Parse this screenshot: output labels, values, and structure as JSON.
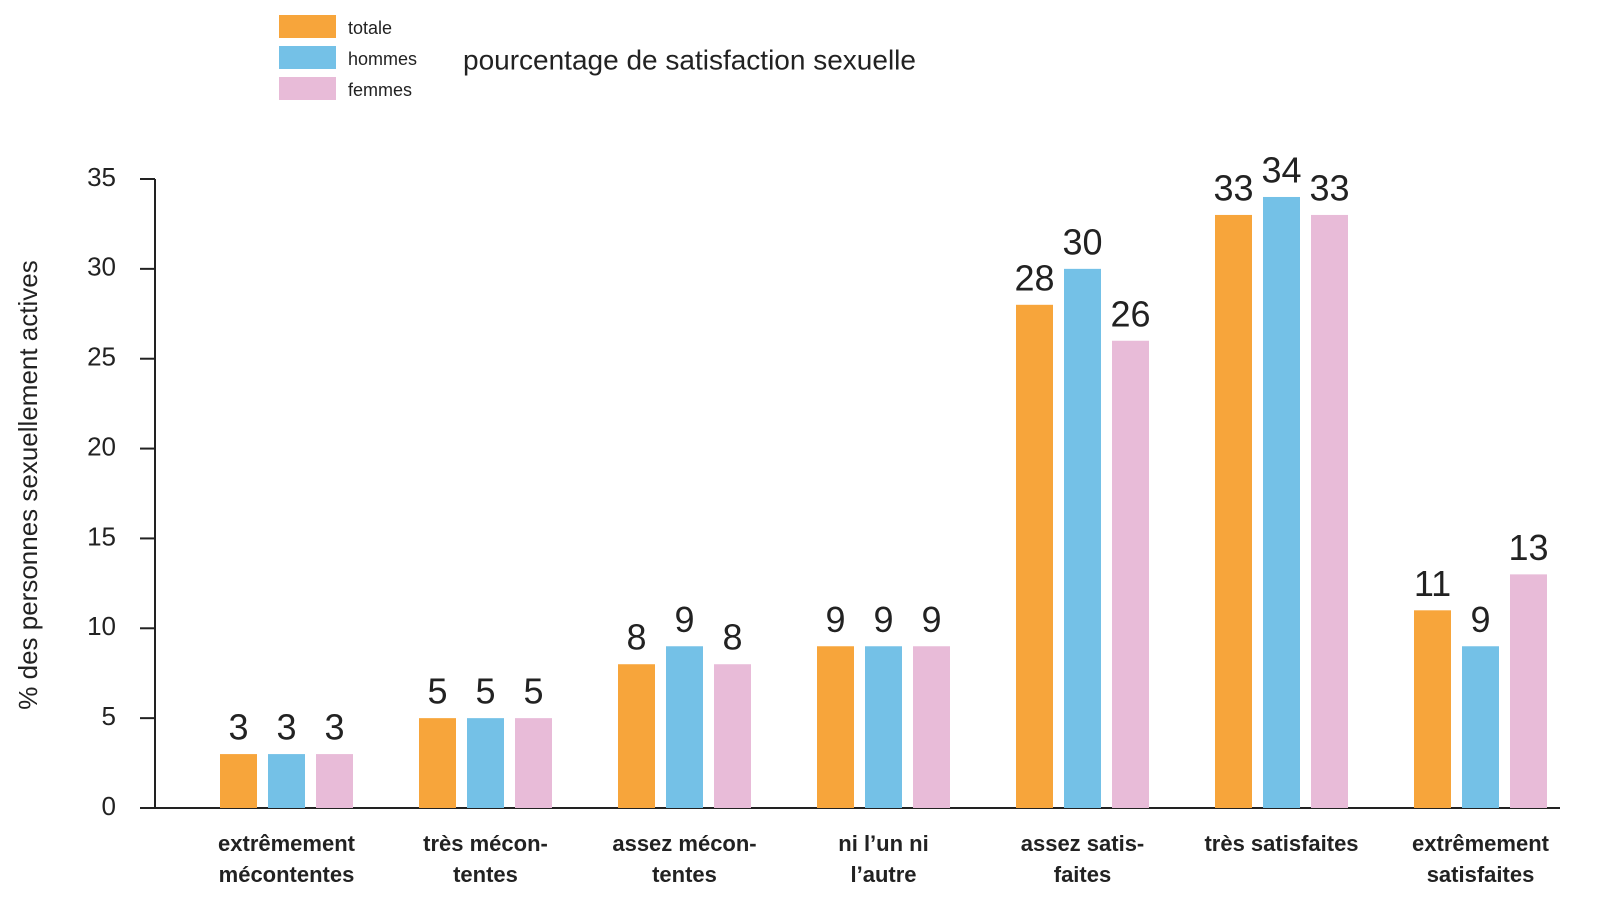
{
  "chart_data": {
    "type": "bar",
    "title": "pourcentage de satisfaction sexuelle",
    "y_label": "% des personnes sexuellement actives",
    "categories": [
      [
        "extrêmement",
        "mécontentes"
      ],
      [
        "très mécon-",
        "tentes"
      ],
      [
        "assez mécon-",
        "tentes"
      ],
      [
        "ni l’un ni",
        "l’autre"
      ],
      [
        "assez satis-",
        "faites"
      ],
      [
        "très satisfaites"
      ],
      [
        "extrêmement",
        "satisfaites"
      ]
    ],
    "series": [
      {
        "name": "totale",
        "color": "#f7a53b",
        "values": [
          3,
          5,
          8,
          9,
          28,
          33,
          11
        ]
      },
      {
        "name": "hommes",
        "color": "#74c1e7",
        "values": [
          3,
          5,
          9,
          9,
          30,
          34,
          9
        ]
      },
      {
        "name": "femmes",
        "color": "#e8bbd8",
        "values": [
          3,
          5,
          8,
          9,
          26,
          33,
          13
        ]
      }
    ],
    "ylim": [
      0,
      35
    ],
    "yticks": [
      0,
      5,
      10,
      15,
      20,
      25,
      30,
      35
    ],
    "grid": false
  }
}
